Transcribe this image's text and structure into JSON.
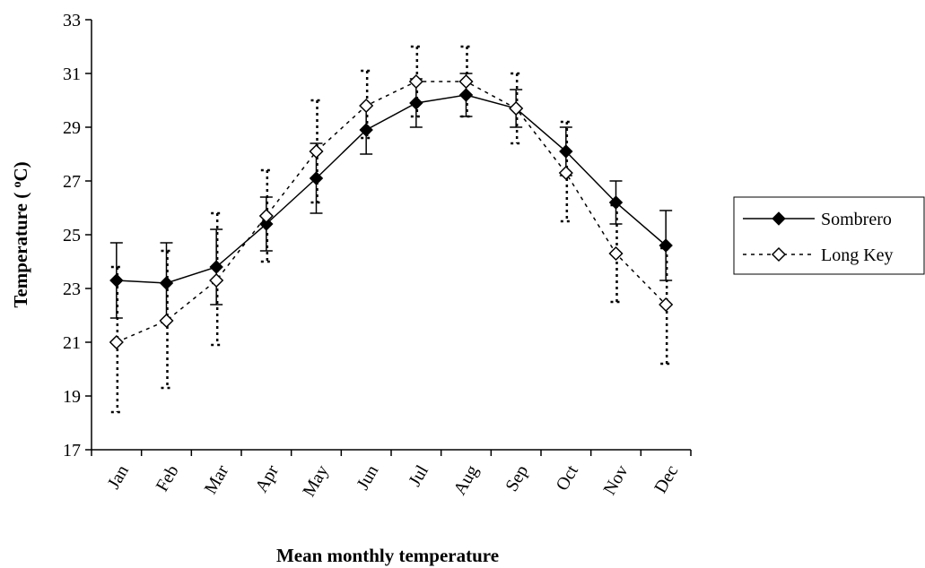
{
  "chart_data": {
    "type": "line",
    "title": "",
    "xlabel": "Mean monthly temperature",
    "ylabel": "Temperature ( ",
    "ylabel_super": "o",
    "ylabel_unit": "C)",
    "ylim": [
      17,
      33
    ],
    "yticks": [
      17,
      19,
      21,
      23,
      25,
      27,
      29,
      31,
      33
    ],
    "categories": [
      "Jan",
      "Feb",
      "Mar",
      "Apr",
      "May",
      "Jun",
      "Jul",
      "Aug",
      "Sep",
      "Oct",
      "Nov",
      "Dec"
    ],
    "grid": false,
    "legend_position": "right",
    "series": [
      {
        "name": "Sombrero",
        "marker": "filled-diamond",
        "line": "solid",
        "values": [
          23.3,
          23.2,
          23.8,
          25.4,
          27.1,
          28.9,
          29.9,
          30.2,
          29.7,
          28.1,
          26.2,
          24.6
        ],
        "err_low": [
          21.9,
          21.8,
          22.4,
          24.4,
          25.8,
          28.0,
          29.0,
          29.4,
          29.0,
          27.2,
          25.4,
          23.3
        ],
        "err_high": [
          24.7,
          24.7,
          25.2,
          26.4,
          28.4,
          29.8,
          30.8,
          31.0,
          30.4,
          29.0,
          27.0,
          25.9
        ]
      },
      {
        "name": "Long Key",
        "marker": "open-diamond",
        "line": "dotted",
        "values": [
          21.0,
          21.8,
          23.3,
          25.7,
          28.1,
          29.8,
          30.7,
          30.7,
          29.7,
          27.3,
          24.3,
          22.4
        ],
        "err_low": [
          18.4,
          19.3,
          20.9,
          24.0,
          26.2,
          28.6,
          29.4,
          29.4,
          28.4,
          25.5,
          22.5,
          20.2
        ],
        "err_high": [
          23.8,
          24.4,
          25.8,
          27.4,
          30.0,
          31.1,
          32.0,
          32.0,
          31.0,
          29.2,
          26.1,
          24.5
        ]
      }
    ]
  }
}
